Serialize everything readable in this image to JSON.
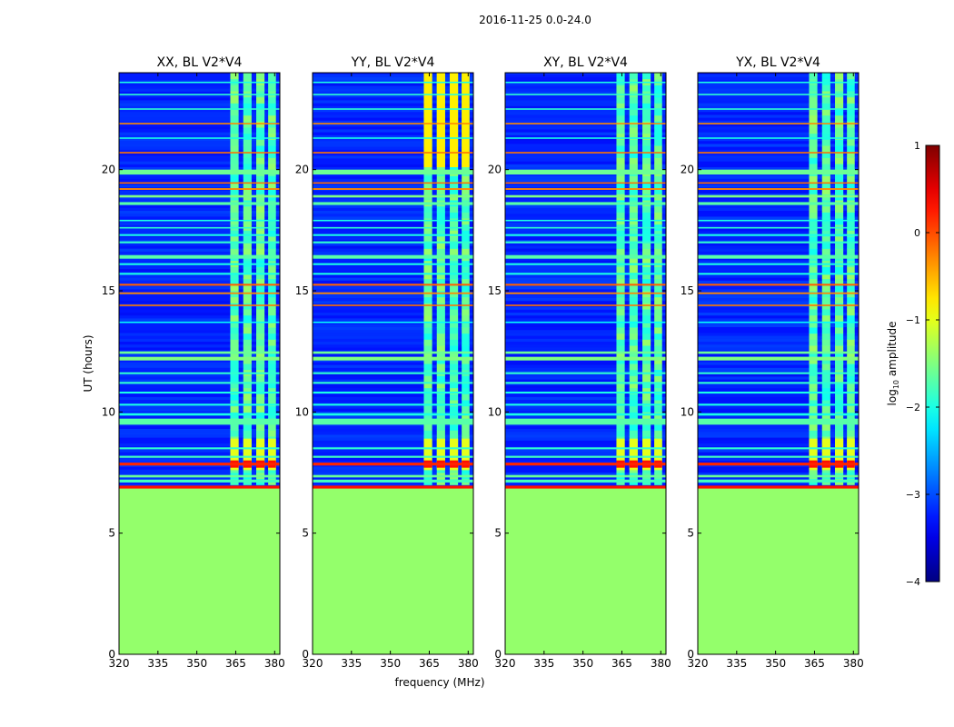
{
  "chart_data": {
    "type": "heatmap",
    "suptitle": "2016-11-25 0.0-24.0",
    "xlabel": "frequency (MHz)",
    "ylabel": "UT (hours)",
    "xlim": [
      320,
      382
    ],
    "ylim": [
      0,
      24
    ],
    "xticks": [
      320,
      335,
      350,
      365,
      380
    ],
    "yticks": [
      0,
      5,
      10,
      15,
      20
    ],
    "colorbar": {
      "label_main": "log",
      "label_sub": "10",
      "label_rest": " amplitude",
      "range": [
        -4,
        1
      ],
      "ticks": [
        -4,
        -3,
        -2,
        -1,
        0,
        1
      ],
      "tick_labels": [
        "−4",
        "−3",
        "−2",
        "−1",
        "0",
        "1"
      ],
      "colormap": "jet"
    },
    "panels": [
      {
        "title": "XX, BL V2*V4",
        "background_value": -3.2,
        "strong_block": false
      },
      {
        "title": "YY, BL V2*V4",
        "background_value": -3.2,
        "strong_block": true
      },
      {
        "title": "XY, BL V2*V4",
        "background_value": -3.2,
        "strong_block": false
      },
      {
        "title": "YX, BL V2*V4",
        "background_value": -3.2,
        "strong_block": false
      }
    ],
    "flagged_region": {
      "ut_start": 0,
      "ut_end": 6.9,
      "value": -1.4
    },
    "rfi_columns_mhz": [
      {
        "center": 364.5,
        "width": 3.2
      },
      {
        "center": 369.5,
        "width": 3.2
      },
      {
        "center": 374.5,
        "width": 3.2
      },
      {
        "center": 379.0,
        "width": 3.0
      }
    ],
    "rfi_column_ut_range": [
      7.0,
      24.0
    ],
    "rfi_column_value": -1.7,
    "yy_block": {
      "ut_start": 20.1,
      "ut_end": 24.0,
      "value": -0.8
    },
    "burst": {
      "ut_start": 7.6,
      "ut_end": 8.9,
      "peak_ut": 7.85,
      "peak_value": 0.3,
      "value": -1.0
    },
    "horizontal_lines_ut": [
      {
        "ut": 6.9,
        "value": 0.3,
        "w": 0.12
      },
      {
        "ut": 7.15,
        "value": -1.8,
        "w": 0.12
      },
      {
        "ut": 7.35,
        "value": -1.6,
        "w": 0.1
      },
      {
        "ut": 7.85,
        "value": 0.2,
        "w": 0.12
      },
      {
        "ut": 8.15,
        "value": -1.8,
        "w": 0.08
      },
      {
        "ut": 8.5,
        "value": -1.9,
        "w": 0.08
      },
      {
        "ut": 9.6,
        "value": -1.7,
        "w": 0.25
      },
      {
        "ut": 9.9,
        "value": -2.0,
        "w": 0.1
      },
      {
        "ut": 10.3,
        "value": -2.0,
        "w": 0.08
      },
      {
        "ut": 10.8,
        "value": -2.0,
        "w": 0.08
      },
      {
        "ut": 11.2,
        "value": -1.9,
        "w": 0.08
      },
      {
        "ut": 11.6,
        "value": -1.9,
        "w": 0.08
      },
      {
        "ut": 12.2,
        "value": -1.5,
        "w": 0.15
      },
      {
        "ut": 12.45,
        "value": -1.6,
        "w": 0.1
      },
      {
        "ut": 13.7,
        "value": -2.1,
        "w": 0.06
      },
      {
        "ut": 14.4,
        "value": -0.2,
        "w": 0.06
      },
      {
        "ut": 14.9,
        "value": -0.3,
        "w": 0.07
      },
      {
        "ut": 15.25,
        "value": -0.1,
        "w": 0.08
      },
      {
        "ut": 15.7,
        "value": -2.0,
        "w": 0.08
      },
      {
        "ut": 16.1,
        "value": -2.0,
        "w": 0.08
      },
      {
        "ut": 16.4,
        "value": -1.7,
        "w": 0.15
      },
      {
        "ut": 17.0,
        "value": -1.9,
        "w": 0.08
      },
      {
        "ut": 17.3,
        "value": -2.0,
        "w": 0.08
      },
      {
        "ut": 17.6,
        "value": -1.9,
        "w": 0.06
      },
      {
        "ut": 17.9,
        "value": -2.0,
        "w": 0.06
      },
      {
        "ut": 18.6,
        "value": -1.7,
        "w": 0.12
      },
      {
        "ut": 18.9,
        "value": -1.5,
        "w": 0.1
      },
      {
        "ut": 19.2,
        "value": -0.3,
        "w": 0.07
      },
      {
        "ut": 19.45,
        "value": -0.2,
        "w": 0.06
      },
      {
        "ut": 19.9,
        "value": -1.6,
        "w": 0.2
      },
      {
        "ut": 20.7,
        "value": -0.2,
        "w": 0.06
      },
      {
        "ut": 21.3,
        "value": -2.0,
        "w": 0.06
      },
      {
        "ut": 21.9,
        "value": -0.3,
        "w": 0.06
      },
      {
        "ut": 22.5,
        "value": -1.9,
        "w": 0.06
      },
      {
        "ut": 23.1,
        "value": -1.9,
        "w": 0.06
      },
      {
        "ut": 23.6,
        "value": -2.0,
        "w": 0.06
      }
    ]
  }
}
